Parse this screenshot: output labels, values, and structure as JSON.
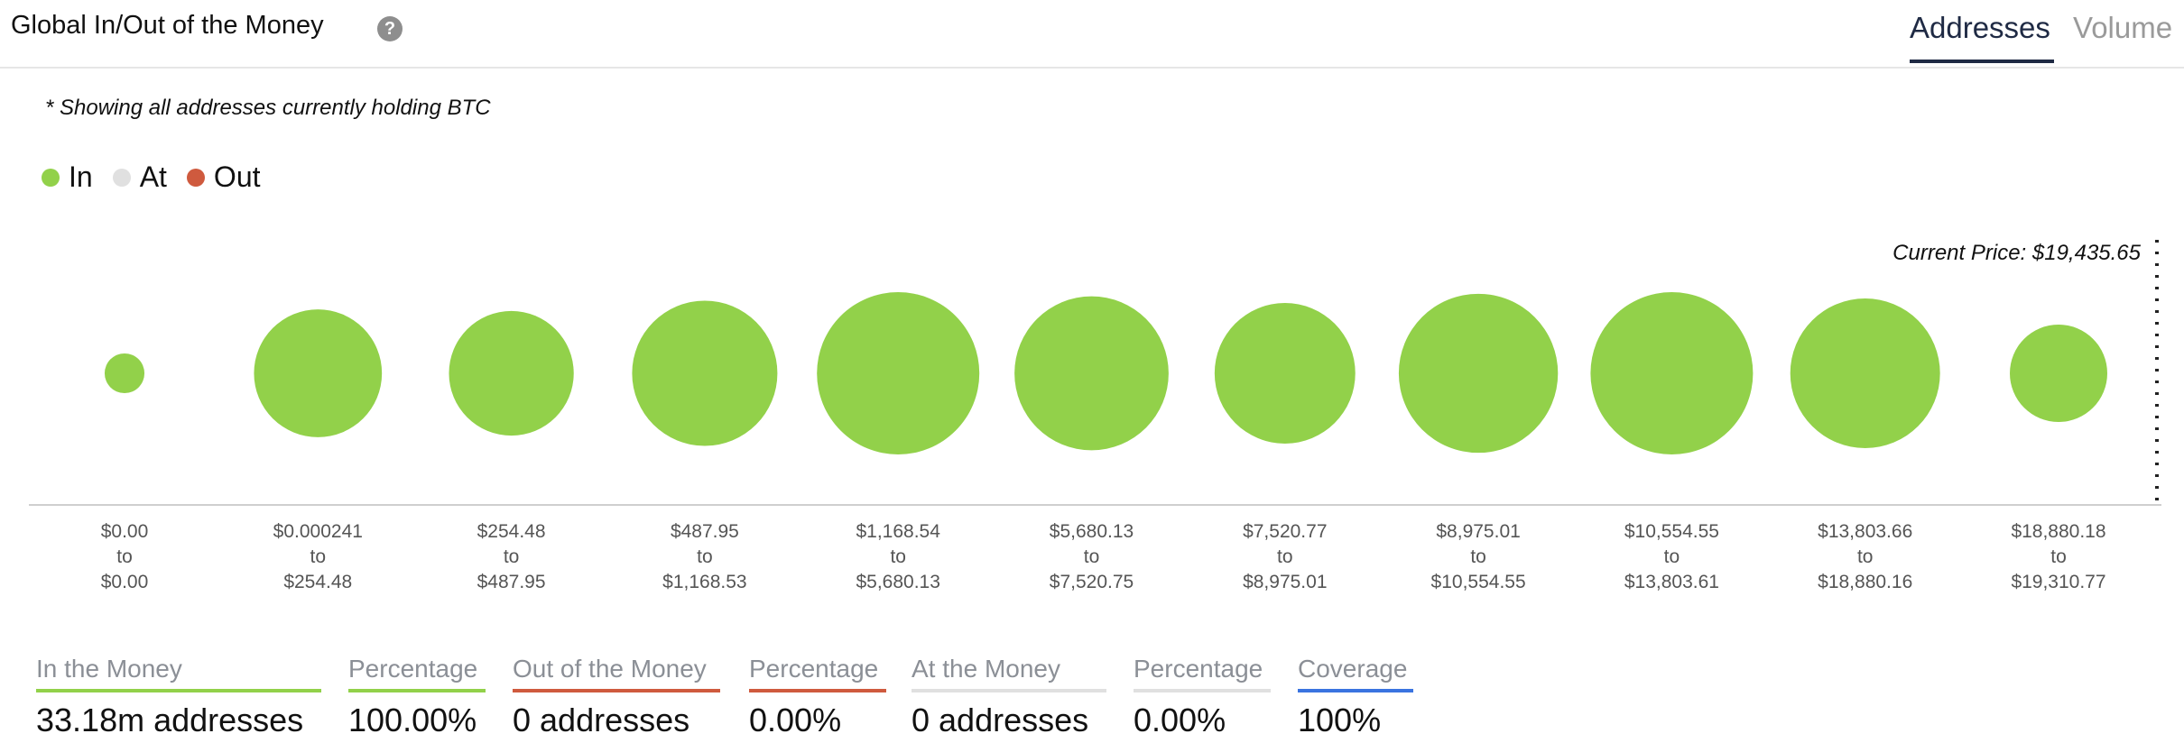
{
  "header": {
    "title": "Global In/Out of the Money",
    "help_icon": "question-circle-icon",
    "tabs": [
      {
        "label": "Addresses",
        "active": true
      },
      {
        "label": "Volume",
        "active": false
      }
    ]
  },
  "note": "* Showing all addresses currently holding BTC",
  "legend": [
    {
      "label": "In",
      "color": "#92d14a"
    },
    {
      "label": "At",
      "color": "#e0e0e0"
    },
    {
      "label": "Out",
      "color": "#cf5a3e"
    }
  ],
  "current_price_label": "Current Price: $19,435.65",
  "chart_data": {
    "type": "scatter",
    "series": [
      {
        "name": "In",
        "color": "#92d14a"
      }
    ],
    "categories": [
      {
        "from": "$0.00",
        "to_word": "to",
        "to": "$0.00",
        "size": 0.06
      },
      {
        "from": "$0.000241",
        "to_word": "to",
        "to": "$254.48",
        "size": 0.62
      },
      {
        "from": "$254.48",
        "to_word": "to",
        "to": "$487.95",
        "size": 0.59
      },
      {
        "from": "$487.95",
        "to_word": "to",
        "to": "$1,168.53",
        "size": 0.8
      },
      {
        "from": "$1,168.54",
        "to_word": "to",
        "to": "$5,680.13",
        "size": 1.0
      },
      {
        "from": "$5,680.13",
        "to_word": "to",
        "to": "$7,520.75",
        "size": 0.9
      },
      {
        "from": "$7,520.77",
        "to_word": "to",
        "to": "$8,975.01",
        "size": 0.75
      },
      {
        "from": "$8,975.01",
        "to_word": "to",
        "to": "$10,554.55",
        "size": 0.96
      },
      {
        "from": "$10,554.55",
        "to_word": "to",
        "to": "$13,803.61",
        "size": 1.0
      },
      {
        "from": "$13,803.66",
        "to_word": "to",
        "to": "$18,880.16",
        "size": 0.85
      },
      {
        "from": "$18,880.18",
        "to_word": "to",
        "to": "$19,310.77",
        "size": 0.36
      }
    ],
    "grid": false,
    "legend_position": "top-left"
  },
  "stats": [
    {
      "label": "In the Money",
      "value": "33.18m addresses",
      "color": "#92d14a"
    },
    {
      "label": "Percentage",
      "value": "100.00%",
      "color": "#92d14a"
    },
    {
      "label": "Out of the Money",
      "value": "0 addresses",
      "color": "#cf5a3e"
    },
    {
      "label": "Percentage",
      "value": "0.00%",
      "color": "#cf5a3e"
    },
    {
      "label": "At the Money",
      "value": "0 addresses",
      "color": "#e0e0e0"
    },
    {
      "label": "Percentage",
      "value": "0.00%",
      "color": "#e0e0e0"
    },
    {
      "label": "Coverage",
      "value": "100%",
      "color": "#3a74e0"
    }
  ]
}
